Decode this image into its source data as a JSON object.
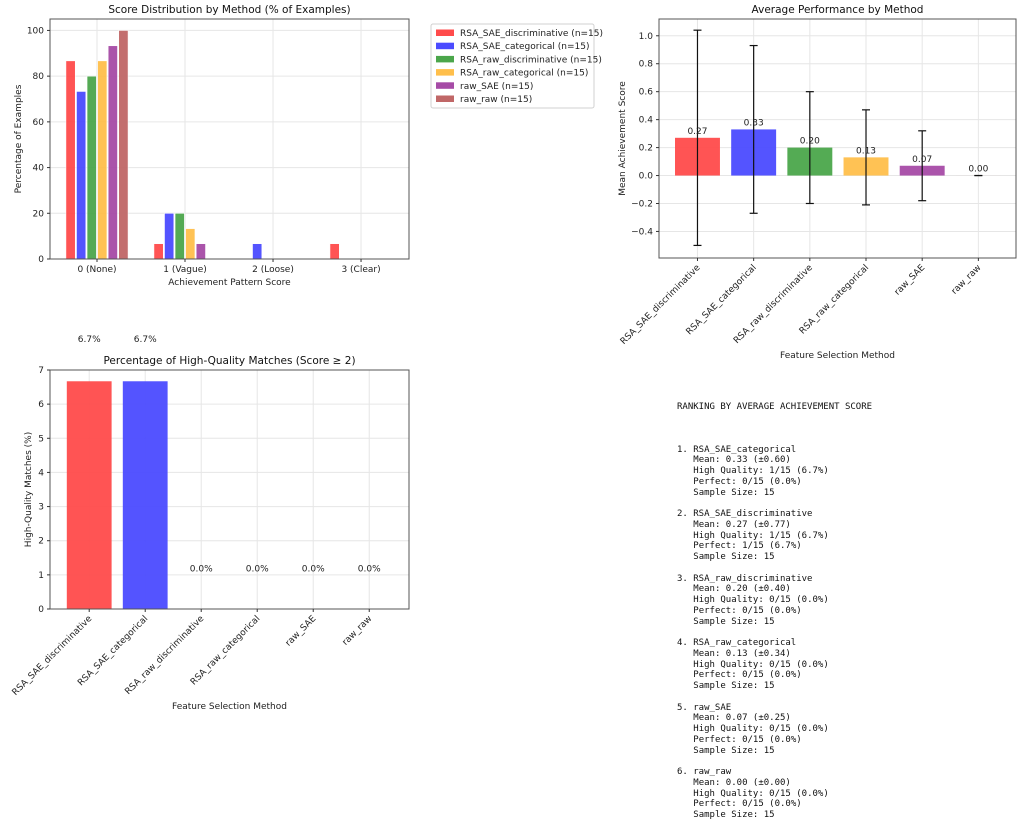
{
  "chart_data": [
    {
      "type": "bar",
      "title": "Score Distribution by Method (% of Examples)",
      "xlabel": "Achievement Pattern Score",
      "ylabel": "Percentage of Examples",
      "categories": [
        "0 (None)",
        "1 (Vague)",
        "2 (Loose)",
        "3 (Clear)"
      ],
      "ylim": [
        0,
        105
      ],
      "yticks": [
        0,
        20,
        40,
        60,
        80,
        100
      ],
      "grid": true,
      "legend_position": "outside-right",
      "series": [
        {
          "name": "RSA_SAE_discriminative (n=15)",
          "color": "#ff4b4b",
          "values": [
            86.7,
            6.7,
            0,
            6.7
          ]
        },
        {
          "name": "RSA_SAE_categorical (n=15)",
          "color": "#4b4bff",
          "values": [
            73.3,
            20.0,
            6.7,
            0
          ]
        },
        {
          "name": "RSA_raw_discriminative (n=15)",
          "color": "#4ba64b",
          "values": [
            80.0,
            20.0,
            0,
            0
          ]
        },
        {
          "name": "RSA_raw_categorical (n=15)",
          "color": "#ffbf4b",
          "values": [
            86.7,
            13.3,
            0,
            0
          ]
        },
        {
          "name": "raw_SAE (n=15)",
          "color": "#a64ba6",
          "values": [
            93.3,
            6.7,
            0,
            0
          ]
        },
        {
          "name": "raw_raw (n=15)",
          "color": "#c06767",
          "values": [
            100.0,
            0,
            0,
            0
          ]
        }
      ]
    },
    {
      "type": "bar",
      "title": "Average Performance by Method",
      "xlabel": "Feature Selection Method",
      "ylabel": "Mean Achievement Score",
      "categories": [
        "RSA_SAE_discriminative",
        "RSA_SAE_categorical",
        "RSA_raw_discriminative",
        "RSA_raw_categorical",
        "raw_SAE",
        "raw_raw"
      ],
      "values": [
        0.27,
        0.33,
        0.2,
        0.13,
        0.07,
        0.0
      ],
      "errors": [
        0.77,
        0.6,
        0.4,
        0.34,
        0.25,
        0.0
      ],
      "data_labels": [
        "0.27",
        "0.33",
        "0.20",
        "0.13",
        "0.07",
        "0.00"
      ],
      "colors": [
        "#ff4b4b",
        "#4b4bff",
        "#4ba64b",
        "#ffbf4b",
        "#a64ba6",
        "#c06767"
      ],
      "ylim": [
        -0.59,
        1.12
      ],
      "yticks": [
        -0.4,
        -0.2,
        0.0,
        0.2,
        0.4,
        0.6,
        0.8,
        1.0
      ],
      "ytick_labels": [
        "−0.4",
        "−0.2",
        "0.0",
        "0.2",
        "0.4",
        "0.6",
        "0.8",
        "1.0"
      ],
      "grid": true
    },
    {
      "type": "bar",
      "title": "Percentage of High-Quality Matches (Score ≥ 2)",
      "xlabel": "Feature Selection Method",
      "ylabel": "High-Quality Matches (%)",
      "categories": [
        "RSA_SAE_discriminative",
        "RSA_SAE_categorical",
        "RSA_raw_discriminative",
        "RSA_raw_categorical",
        "raw_SAE",
        "raw_raw"
      ],
      "values": [
        6.67,
        6.67,
        0.0,
        0.0,
        0.0,
        0.0
      ],
      "data_labels": [
        "6.7%",
        "6.7%",
        "0.0%",
        "0.0%",
        "0.0%",
        "0.0%"
      ],
      "colors": [
        "#ff4b4b",
        "#4b4bff",
        "#4ba64b",
        "#ffbf4b",
        "#a64ba6",
        "#c06767"
      ],
      "ylim": [
        0,
        7
      ],
      "yticks": [
        0,
        1,
        2,
        3,
        4,
        5,
        6,
        7
      ],
      "grid": true
    }
  ],
  "ranking": {
    "title": "RANKING BY AVERAGE ACHIEVEMENT SCORE",
    "entries": [
      {
        "header": "1. RSA_SAE_categorical",
        "mean": "Mean: 0.33 (±0.60)",
        "high_quality": "High Quality: 1/15 (6.7%)",
        "perfect": "Perfect: 0/15 (0.0%)",
        "sample": "Sample Size: 15"
      },
      {
        "header": "2. RSA_SAE_discriminative",
        "mean": "Mean: 0.27 (±0.77)",
        "high_quality": "High Quality: 1/15 (6.7%)",
        "perfect": "Perfect: 1/15 (6.7%)",
        "sample": "Sample Size: 15"
      },
      {
        "header": "3. RSA_raw_discriminative",
        "mean": "Mean: 0.20 (±0.40)",
        "high_quality": "High Quality: 0/15 (0.0%)",
        "perfect": "Perfect: 0/15 (0.0%)",
        "sample": "Sample Size: 15"
      },
      {
        "header": "4. RSA_raw_categorical",
        "mean": "Mean: 0.13 (±0.34)",
        "high_quality": "High Quality: 0/15 (0.0%)",
        "perfect": "Perfect: 0/15 (0.0%)",
        "sample": "Sample Size: 15"
      },
      {
        "header": "5. raw_SAE",
        "mean": "Mean: 0.07 (±0.25)",
        "high_quality": "High Quality: 0/15 (0.0%)",
        "perfect": "Perfect: 0/15 (0.0%)",
        "sample": "Sample Size: 15"
      },
      {
        "header": "6. raw_raw",
        "mean": "Mean: 0.00 (±0.00)",
        "high_quality": "High Quality: 0/15 (0.0%)",
        "perfect": "Perfect: 0/15 (0.0%)",
        "sample": "Sample Size: 15"
      }
    ]
  }
}
